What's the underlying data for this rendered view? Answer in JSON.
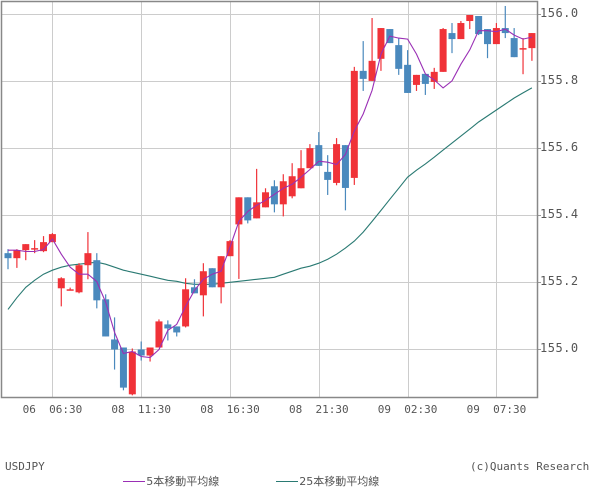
{
  "chart_data": {
    "type": "candlestick",
    "symbol": "USDJPY",
    "title": "",
    "xlabel": "",
    "ylabel": "",
    "ylim": [
      154.85,
      156.04
    ],
    "y_ticks": [
      "156.0",
      "155.8",
      "155.6",
      "155.4",
      "155.2",
      "155.0"
    ],
    "y_tick_values": [
      156.0,
      155.8,
      155.6,
      155.4,
      155.2,
      155.0
    ],
    "x_ticks": [
      "06  06:30",
      "08  11:30",
      "08  16:30",
      "08  21:30",
      "09  02:30",
      "09  07:30"
    ],
    "x_tick_candle_index": [
      5,
      15,
      25,
      35,
      45,
      55
    ],
    "grid": true,
    "up_color": "#f03238",
    "down_color": "#4a89bd",
    "candles": [
      {
        "o": 155.285,
        "h": 155.297,
        "l": 155.237,
        "c": 155.27
      },
      {
        "o": 155.27,
        "h": 155.297,
        "l": 155.241,
        "c": 155.294
      },
      {
        "o": 155.294,
        "h": 155.297,
        "l": 155.264,
        "c": 155.312
      },
      {
        "o": 155.3,
        "h": 155.324,
        "l": 155.285,
        "c": 155.3
      },
      {
        "o": 155.291,
        "h": 155.336,
        "l": 155.288,
        "c": 155.318
      },
      {
        "o": 155.318,
        "h": 155.345,
        "l": 155.318,
        "c": 155.342
      },
      {
        "o": 155.18,
        "h": 155.213,
        "l": 155.126,
        "c": 155.21
      },
      {
        "o": 155.177,
        "h": 155.182,
        "l": 155.174,
        "c": 155.177
      },
      {
        "o": 155.168,
        "h": 155.255,
        "l": 155.165,
        "c": 155.249
      },
      {
        "o": 155.249,
        "h": 155.348,
        "l": 155.207,
        "c": 155.285
      },
      {
        "o": 155.264,
        "h": 155.285,
        "l": 155.12,
        "c": 155.144
      },
      {
        "o": 155.147,
        "h": 155.162,
        "l": 155.039,
        "c": 155.036
      },
      {
        "o": 155.027,
        "h": 155.093,
        "l": 154.937,
        "c": 154.997
      },
      {
        "o": 155.003,
        "h": 155.003,
        "l": 154.875,
        "c": 154.883
      },
      {
        "o": 154.863,
        "h": 155.0,
        "l": 154.86,
        "c": 154.991
      },
      {
        "o": 154.997,
        "h": 155.021,
        "l": 154.964,
        "c": 154.979
      },
      {
        "o": 154.979,
        "h": 155.003,
        "l": 154.961,
        "c": 155.003
      },
      {
        "o": 155.003,
        "h": 155.087,
        "l": 155.003,
        "c": 155.081
      },
      {
        "o": 155.072,
        "h": 155.084,
        "l": 155.024,
        "c": 155.06
      },
      {
        "o": 155.066,
        "h": 155.066,
        "l": 155.036,
        "c": 155.048
      },
      {
        "o": 155.066,
        "h": 155.21,
        "l": 155.063,
        "c": 155.177
      },
      {
        "o": 155.183,
        "h": 155.207,
        "l": 155.165,
        "c": 155.165
      },
      {
        "o": 155.159,
        "h": 155.255,
        "l": 155.096,
        "c": 155.231
      },
      {
        "o": 155.24,
        "h": 155.24,
        "l": 155.183,
        "c": 155.183
      },
      {
        "o": 155.183,
        "h": 155.276,
        "l": 155.135,
        "c": 155.276
      },
      {
        "o": 155.276,
        "h": 155.324,
        "l": 155.276,
        "c": 155.321
      },
      {
        "o": 155.371,
        "h": 155.402,
        "l": 155.208,
        "c": 155.452
      },
      {
        "o": 155.452,
        "h": 155.452,
        "l": 155.374,
        "c": 155.383
      },
      {
        "o": 155.389,
        "h": 155.537,
        "l": 155.389,
        "c": 155.437
      },
      {
        "o": 155.422,
        "h": 155.479,
        "l": 155.422,
        "c": 155.467
      },
      {
        "o": 155.485,
        "h": 155.503,
        "l": 155.407,
        "c": 155.431
      },
      {
        "o": 155.431,
        "h": 155.521,
        "l": 155.395,
        "c": 155.5
      },
      {
        "o": 155.455,
        "h": 155.554,
        "l": 155.449,
        "c": 155.515
      },
      {
        "o": 155.479,
        "h": 155.593,
        "l": 155.479,
        "c": 155.539
      },
      {
        "o": 155.539,
        "h": 155.611,
        "l": 155.539,
        "c": 155.599
      },
      {
        "o": 155.608,
        "h": 155.647,
        "l": 155.546,
        "c": 155.546
      },
      {
        "o": 155.528,
        "h": 155.578,
        "l": 155.459,
        "c": 155.504
      },
      {
        "o": 155.495,
        "h": 155.629,
        "l": 155.488,
        "c": 155.611
      },
      {
        "o": 155.608,
        "h": 155.608,
        "l": 155.413,
        "c": 155.48
      },
      {
        "o": 155.51,
        "h": 155.842,
        "l": 155.489,
        "c": 155.83
      },
      {
        "o": 155.83,
        "h": 155.919,
        "l": 155.77,
        "c": 155.806
      },
      {
        "o": 155.8,
        "h": 155.988,
        "l": 155.8,
        "c": 155.86
      },
      {
        "o": 155.866,
        "h": 155.958,
        "l": 155.83,
        "c": 155.958
      },
      {
        "o": 155.955,
        "h": 155.952,
        "l": 155.952,
        "c": 155.913
      },
      {
        "o": 155.907,
        "h": 155.928,
        "l": 155.818,
        "c": 155.836
      },
      {
        "o": 155.848,
        "h": 155.892,
        "l": 155.776,
        "c": 155.764
      },
      {
        "o": 155.788,
        "h": 155.818,
        "l": 155.77,
        "c": 155.818
      },
      {
        "o": 155.821,
        "h": 155.821,
        "l": 155.758,
        "c": 155.791
      },
      {
        "o": 155.797,
        "h": 155.839,
        "l": 155.776,
        "c": 155.827
      },
      {
        "o": 155.827,
        "h": 155.958,
        "l": 155.827,
        "c": 155.955
      },
      {
        "o": 155.943,
        "h": 155.973,
        "l": 155.883,
        "c": 155.925
      },
      {
        "o": 155.925,
        "h": 155.979,
        "l": 155.925,
        "c": 155.973
      },
      {
        "o": 155.979,
        "h": 155.997,
        "l": 155.955,
        "c": 155.997
      },
      {
        "o": 155.994,
        "h": 155.994,
        "l": 155.937,
        "c": 155.94
      },
      {
        "o": 155.955,
        "h": 155.955,
        "l": 155.868,
        "c": 155.91
      },
      {
        "o": 155.91,
        "h": 155.973,
        "l": 155.91,
        "c": 155.958
      },
      {
        "o": 155.958,
        "h": 156.024,
        "l": 155.928,
        "c": 155.943
      },
      {
        "o": 155.928,
        "h": 155.958,
        "l": 155.871,
        "c": 155.871
      },
      {
        "o": 155.898,
        "h": 155.928,
        "l": 155.82,
        "c": 155.898
      },
      {
        "o": 155.898,
        "h": 155.943,
        "l": 155.86,
        "c": 155.943
      }
    ],
    "series": [
      {
        "name": "5本移動平均線",
        "color": "#9a2fb5",
        "values": [
          155.294,
          155.294,
          155.29,
          155.29,
          155.296,
          155.327,
          155.282,
          155.243,
          155.222,
          155.222,
          155.2,
          155.138,
          155.048,
          154.985,
          154.991,
          154.976,
          154.973,
          154.997,
          155.054,
          155.072,
          155.126,
          155.174,
          155.207,
          155.222,
          155.231,
          155.303,
          155.38,
          155.41,
          155.428,
          155.443,
          155.461,
          155.479,
          155.491,
          155.512,
          155.535,
          155.56,
          155.557,
          155.55,
          155.58,
          155.65,
          155.701,
          155.772,
          155.88,
          155.934,
          155.928,
          155.925,
          155.88,
          155.821,
          155.803,
          155.779,
          155.8,
          155.85,
          155.893,
          155.95,
          155.95,
          155.947,
          155.955,
          155.937,
          155.925,
          155.931
        ]
      },
      {
        "name": "25本移動平均線",
        "color": "#2a7a73",
        "values": [
          155.117,
          155.152,
          155.183,
          155.204,
          155.222,
          155.234,
          155.243,
          155.249,
          155.252,
          155.255,
          155.258,
          155.252,
          155.243,
          155.234,
          155.228,
          155.222,
          155.216,
          155.21,
          155.204,
          155.201,
          155.195,
          155.192,
          155.192,
          155.192,
          155.195,
          155.198,
          155.201,
          155.204,
          155.207,
          155.21,
          155.213,
          155.222,
          155.231,
          155.24,
          155.246,
          155.255,
          155.267,
          155.282,
          155.3,
          155.321,
          155.348,
          155.38,
          155.413,
          155.446,
          155.479,
          155.512,
          155.533,
          155.552,
          155.572,
          155.593,
          155.614,
          155.635,
          155.656,
          155.677,
          155.695,
          155.713,
          155.731,
          155.749,
          155.764,
          155.779
        ]
      }
    ]
  },
  "legend": {
    "symbol_label": "USDJPY",
    "ma5_label": "5本移動平均線",
    "ma25_label": "25本移動平均線",
    "ma5_color": "#9a2fb5",
    "ma25_color": "#2a7a73"
  },
  "copyright": "(c)Quants Research"
}
